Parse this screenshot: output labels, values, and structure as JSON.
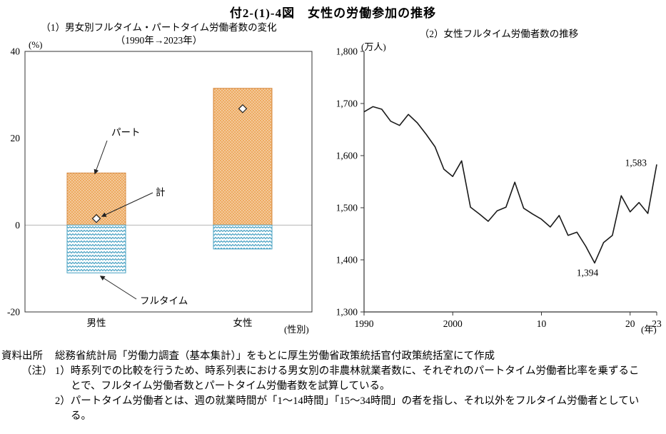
{
  "title": "付2-(1)-4図　女性の労働参加の推移",
  "chart_data": [
    {
      "type": "bar",
      "title_line1": "（1）男女別フルタイム・パートタイム労働者数の変化",
      "title_line2": "（1990年→2023年）",
      "unit": "(%)",
      "x_axis_label": "(性別)",
      "categories": [
        "男性",
        "女性"
      ],
      "y_ticks": [
        40,
        20,
        0,
        -20
      ],
      "ylim": [
        -20,
        40
      ],
      "series": [
        {
          "name": "パート",
          "values": [
            12,
            31.5
          ]
        },
        {
          "name": "フルタイム",
          "values": [
            -11,
            -5.5
          ]
        },
        {
          "name": "計",
          "values": [
            1.5,
            26.8
          ]
        }
      ],
      "labels": {
        "part": "パート",
        "total": "計",
        "fulltime": "フルタイム"
      },
      "colors": {
        "part_fill": "#edaa61",
        "part_edge": "#d4883f",
        "fulltime_stroke": "#46a0c2",
        "marker_fill": "#ffffff",
        "marker_edge": "#222222",
        "zero_line": "#b5b5b5"
      }
    },
    {
      "type": "line",
      "title": "（2）女性フルタイム労働者数の推移",
      "unit": "(万人)",
      "x_axis_label": "(年)",
      "ylim": [
        1300,
        1800
      ],
      "y_ticks": [
        {
          "value": 1800,
          "label": "1,800"
        },
        {
          "value": 1700,
          "label": "1,700"
        },
        {
          "value": 1600,
          "label": "1,600"
        },
        {
          "value": 1500,
          "label": "1,500"
        },
        {
          "value": 1400,
          "label": "1,400"
        },
        {
          "value": 1300,
          "label": "1,300"
        }
      ],
      "x_ticks": [
        {
          "year": 1990,
          "label": "1990"
        },
        {
          "year": 2000,
          "label": "2000"
        },
        {
          "year": 2010,
          "label": "10"
        },
        {
          "year": 2020,
          "label": "20"
        },
        {
          "year": 2023,
          "label": "23"
        }
      ],
      "years": [
        1990,
        1991,
        1992,
        1993,
        1994,
        1995,
        1996,
        1997,
        1998,
        1999,
        2000,
        2001,
        2002,
        2003,
        2004,
        2005,
        2006,
        2007,
        2008,
        2009,
        2010,
        2011,
        2012,
        2013,
        2014,
        2015,
        2016,
        2017,
        2018,
        2019,
        2020,
        2021,
        2022,
        2023
      ],
      "values": [
        1684,
        1694,
        1689,
        1666,
        1658,
        1679,
        1663,
        1641,
        1617,
        1574,
        1560,
        1590,
        1501,
        1488,
        1474,
        1494,
        1501,
        1549,
        1499,
        1488,
        1478,
        1463,
        1485,
        1447,
        1453,
        1426,
        1394,
        1433,
        1447,
        1523,
        1492,
        1510,
        1489,
        1583
      ],
      "line_color": "#1a1a1a",
      "point_labels": [
        {
          "year": 2016,
          "value": 1394,
          "label": "1,394",
          "position": "below"
        },
        {
          "year": 2023,
          "value": 1583,
          "label": "1,583",
          "position": "above"
        }
      ]
    }
  ],
  "notes": {
    "source_label": "資料出所",
    "source_text": "総務省統計局「労働力調査（基本集計）」をもとに厚生労働省政策統括官付政策統括室にて作成",
    "note_label": "（注）",
    "items": [
      "1）時系列での比較を行うため、時系列表における男女別の非農林就業者数に、それぞれのパートタイム労働者比率を乗ずることで、フルタイム労働者数とパートタイム労働者数を試算している。",
      "2）パートタイム労働者とは、週の就業時間が「1～14時間」「15～34時間」の者を指し、それ以外をフルタイム労働者としている。"
    ]
  }
}
